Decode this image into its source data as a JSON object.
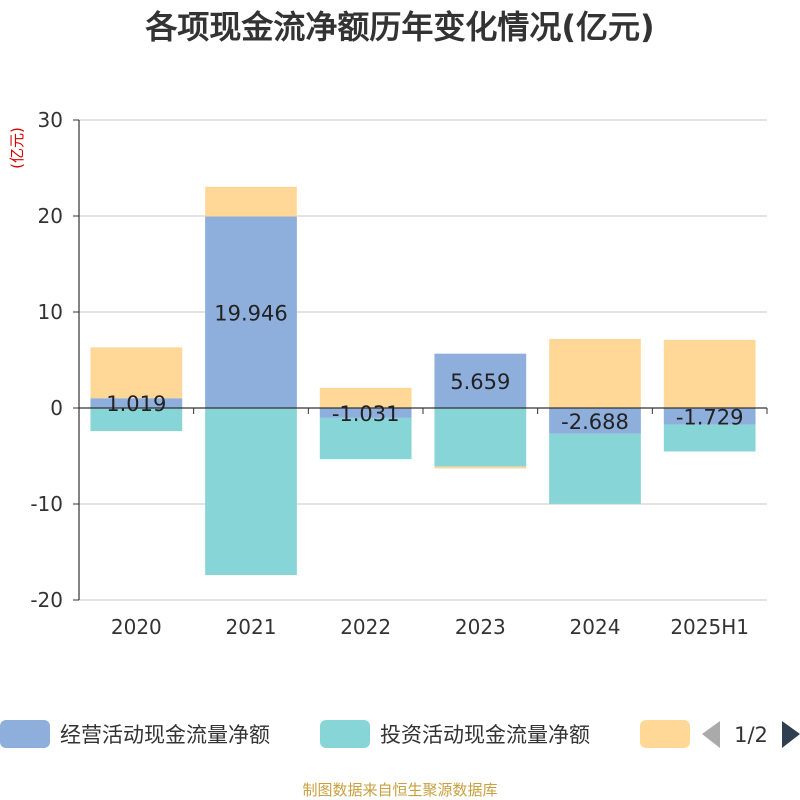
{
  "chart_data": {
    "type": "bar",
    "stacked": true,
    "title": "各项现金流净额历年变化情况(亿元)",
    "ylabel": "(亿元)",
    "categories": [
      "2020",
      "2021",
      "2022",
      "2023",
      "2024",
      "2025H1"
    ],
    "ylim": [
      -20,
      30
    ],
    "yticks": [
      30,
      20,
      10,
      0,
      -10,
      -20
    ],
    "grid": true,
    "series": [
      {
        "name": "经营活动现金流量净额",
        "color": "#8eaedb",
        "values": [
          1.019,
          19.946,
          -1.031,
          5.659,
          -2.688,
          -1.729
        ],
        "labels": [
          "1.019",
          "19.946",
          "-1.031",
          "5.659",
          "-2.688",
          "-1.729"
        ]
      },
      {
        "name": "投资活动现金流量净额",
        "color": "#88d5d8",
        "values": [
          -2.4,
          -17.4,
          -4.3,
          -6.1,
          -7.3,
          -2.8
        ]
      },
      {
        "name": "",
        "color": "#ffd898",
        "values": [
          5.3,
          3.1,
          2.1,
          -0.2,
          7.2,
          7.1
        ]
      }
    ],
    "legend": {
      "position": "bottom",
      "page": "1/2"
    }
  },
  "footer": {
    "source": "制图数据来自恒生聚源数据库"
  }
}
